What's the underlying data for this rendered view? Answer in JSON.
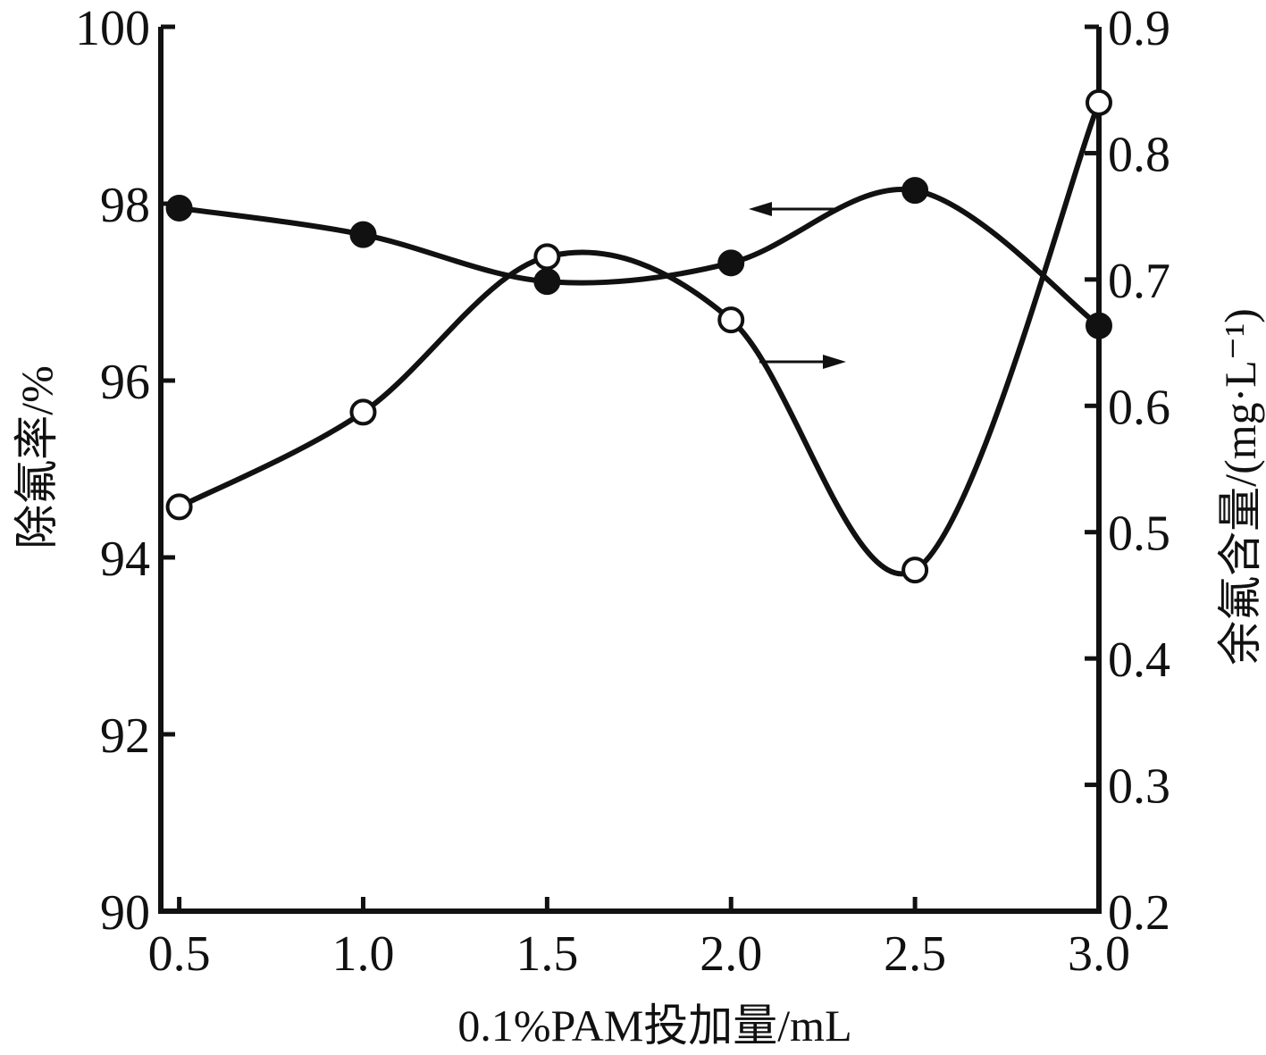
{
  "chart_data": {
    "type": "line",
    "title": "",
    "xlabel": "0.1%PAM投加量/mL",
    "ylabel_left": "除氟率/%",
    "ylabel_right": "余氟含量/(mg·L⁻¹)",
    "x": [
      0.5,
      1.0,
      1.5,
      2.0,
      2.5,
      3.0
    ],
    "x_tick_labels": [
      "0.5",
      "1.0",
      "1.5",
      "2.0",
      "2.5",
      "3.0"
    ],
    "xlim": [
      0.45,
      3.0
    ],
    "ylim_left": [
      90,
      100
    ],
    "ylim_right": [
      0.2,
      0.9
    ],
    "y_left_ticks": [
      "90",
      "92",
      "94",
      "96",
      "98",
      "100"
    ],
    "y_right_ticks": [
      "0.2",
      "0.3",
      "0.4",
      "0.5",
      "0.6",
      "0.7",
      "0.8",
      "0.9"
    ],
    "grid": false,
    "series": [
      {
        "axis": "left",
        "marker": "filled-circle",
        "values": [
          97.95,
          97.65,
          97.12,
          97.33,
          98.15,
          96.62
        ]
      },
      {
        "axis": "right",
        "marker": "open-circle",
        "values": [
          0.52,
          0.595,
          0.718,
          0.668,
          0.47,
          0.84
        ]
      }
    ]
  }
}
